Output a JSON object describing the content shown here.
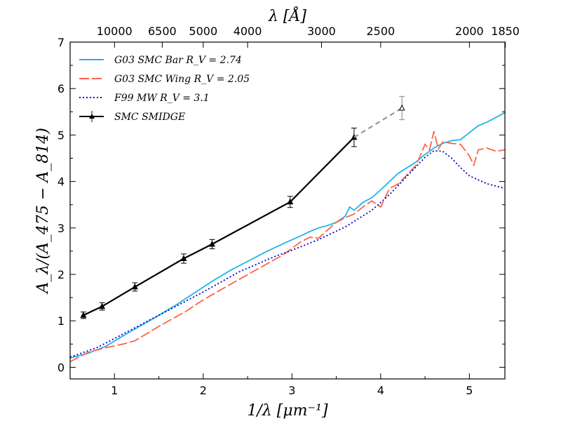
{
  "chart_data": {
    "type": "line",
    "xlabel": "1/λ [μm⁻¹]",
    "ylabel": "A_λ/(A_475 − A_814)",
    "top_xlabel": "λ [Å]",
    "xlim": [
      0.5,
      5.4
    ],
    "ylim": [
      -0.25,
      7
    ],
    "xticks": [
      1,
      2,
      3,
      4,
      5
    ],
    "yticks": [
      0,
      1,
      2,
      3,
      4,
      5,
      6,
      7
    ],
    "top_ticks": [
      {
        "label": "10000",
        "x": 1.0
      },
      {
        "label": "6500",
        "x": 1.538
      },
      {
        "label": "5000",
        "x": 2.0
      },
      {
        "label": "4000",
        "x": 2.5
      },
      {
        "label": "3000",
        "x": 3.333
      },
      {
        "label": "2500",
        "x": 4.0
      },
      {
        "label": "2000",
        "x": 5.0
      },
      {
        "label": "1850",
        "x": 5.405
      }
    ],
    "legend_position": "top-left",
    "grid": false,
    "series": [
      {
        "name": "G03 SMC Bar R_V = 2.74",
        "color": "#1EB5EA",
        "style": "solid",
        "x": [
          0.5,
          0.7,
          0.9,
          1.1,
          1.3,
          1.5,
          1.7,
          1.9,
          2.1,
          2.3,
          2.5,
          2.7,
          2.9,
          3.1,
          3.2,
          3.3,
          3.4,
          3.5,
          3.6,
          3.65,
          3.7,
          3.8,
          3.9,
          4.0,
          4.1,
          4.2,
          4.3,
          4.4,
          4.5,
          4.6,
          4.7,
          4.8,
          4.9,
          5.0,
          5.1,
          5.2,
          5.3,
          5.4
        ],
        "y": [
          0.2,
          0.3,
          0.45,
          0.68,
          0.9,
          1.12,
          1.35,
          1.6,
          1.85,
          2.08,
          2.28,
          2.48,
          2.66,
          2.83,
          2.92,
          3.0,
          3.05,
          3.12,
          3.25,
          3.45,
          3.38,
          3.55,
          3.65,
          3.82,
          4.0,
          4.18,
          4.3,
          4.42,
          4.58,
          4.72,
          4.82,
          4.88,
          4.9,
          5.05,
          5.2,
          5.28,
          5.38,
          5.48
        ]
      },
      {
        "name": "G03 SMC Wing R_V = 2.05",
        "color": "#FF6347",
        "style": "dashed",
        "x": [
          0.5,
          0.7,
          0.9,
          1.1,
          1.23,
          1.5,
          1.8,
          2.0,
          2.3,
          2.6,
          2.9,
          3.1,
          3.2,
          3.3,
          3.4,
          3.5,
          3.6,
          3.7,
          3.8,
          3.9,
          4.0,
          4.1,
          4.2,
          4.3,
          4.4,
          4.5,
          4.55,
          4.6,
          4.65,
          4.7,
          4.8,
          4.9,
          5.0,
          5.05,
          5.1,
          5.2,
          5.3,
          5.4
        ],
        "y": [
          0.12,
          0.32,
          0.42,
          0.5,
          0.57,
          0.88,
          1.2,
          1.45,
          1.78,
          2.1,
          2.42,
          2.7,
          2.8,
          2.78,
          2.95,
          3.12,
          3.22,
          3.3,
          3.45,
          3.58,
          3.45,
          3.85,
          3.95,
          4.15,
          4.35,
          4.8,
          4.68,
          5.08,
          4.7,
          4.85,
          4.82,
          4.8,
          4.55,
          4.35,
          4.68,
          4.72,
          4.65,
          4.68
        ]
      },
      {
        "name": "F99 MW R_V = 3.1",
        "color": "#0000CD",
        "style": "dotted",
        "x": [
          0.5,
          0.8,
          1.0,
          1.3,
          1.6,
          2.0,
          2.4,
          2.8,
          3.0,
          3.3,
          3.6,
          3.9,
          4.1,
          4.3,
          4.5,
          4.6,
          4.7,
          4.8,
          4.9,
          5.0,
          5.2,
          5.4
        ],
        "y": [
          0.22,
          0.42,
          0.62,
          0.92,
          1.22,
          1.62,
          2.05,
          2.38,
          2.52,
          2.75,
          3.02,
          3.38,
          3.72,
          4.12,
          4.52,
          4.66,
          4.65,
          4.5,
          4.3,
          4.12,
          3.95,
          3.85
        ]
      },
      {
        "name": "SMC SMIDGE",
        "color": "#000000",
        "style": "solid-markers",
        "x": [
          0.65,
          0.86,
          1.23,
          1.78,
          2.1,
          2.98,
          3.7
        ],
        "y": [
          1.12,
          1.31,
          1.73,
          2.34,
          2.65,
          3.56,
          4.95
        ],
        "yerr": [
          0.07,
          0.08,
          0.09,
          0.1,
          0.1,
          0.12,
          0.2
        ]
      }
    ],
    "extrapolated_point": {
      "x": 4.24,
      "y": 5.58,
      "yerr": 0.25,
      "color": "#999999"
    }
  }
}
